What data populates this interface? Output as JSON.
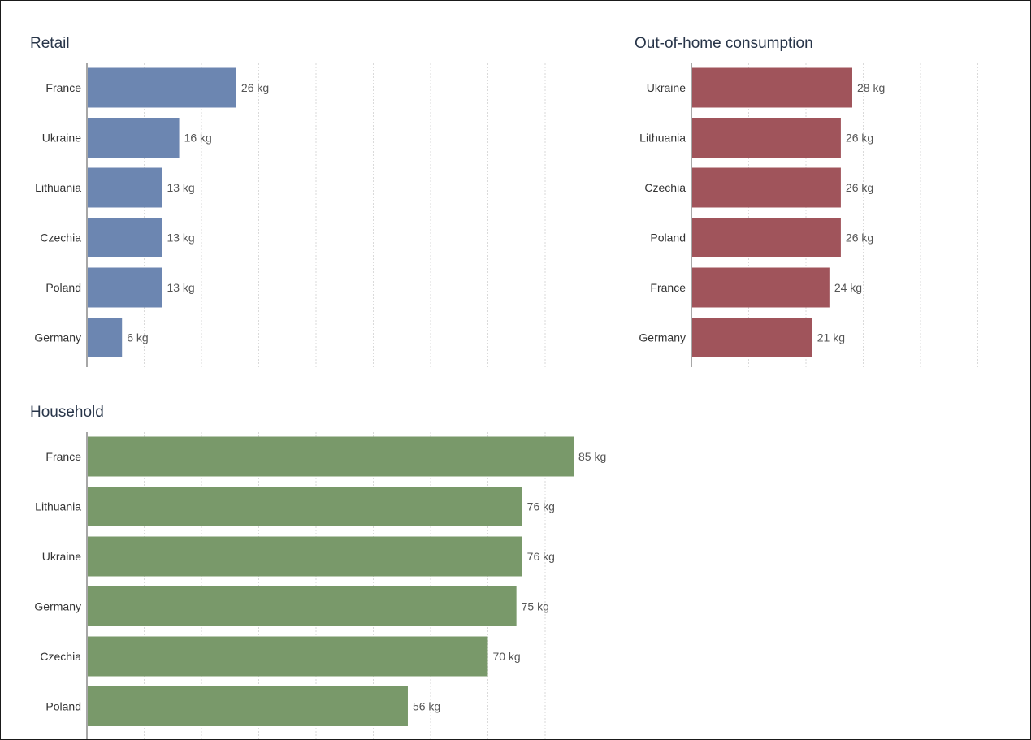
{
  "chart_data": [
    {
      "type": "bar",
      "orientation": "horizontal",
      "title": "Retail",
      "categories": [
        "France",
        "Ukraine",
        "Lithuania",
        "Czechia",
        "Poland",
        "Germany"
      ],
      "values": [
        26,
        16,
        13,
        13,
        13,
        6
      ],
      "value_labels": [
        "26 kg",
        "16 kg",
        "13 kg",
        "13 kg",
        "13 kg",
        "6 kg"
      ],
      "unit": "kg",
      "color": "#6c86b1",
      "xlim": [
        0,
        85
      ],
      "grid": true
    },
    {
      "type": "bar",
      "orientation": "horizontal",
      "title": "Out-of-home consumption",
      "categories": [
        "Ukraine",
        "Lithuania",
        "Czechia",
        "Poland",
        "France",
        "Germany"
      ],
      "values": [
        28,
        26,
        26,
        26,
        24,
        21
      ],
      "value_labels": [
        "28 kg",
        "26 kg",
        "26 kg",
        "26 kg",
        "24 kg",
        "21 kg"
      ],
      "unit": "kg",
      "color": "#a0545b",
      "xlim": [
        0,
        85
      ],
      "grid": true
    },
    {
      "type": "bar",
      "orientation": "horizontal",
      "title": "Household",
      "categories": [
        "France",
        "Lithuania",
        "Ukraine",
        "Germany",
        "Czechia",
        "Poland"
      ],
      "values": [
        85,
        76,
        76,
        75,
        70,
        56
      ],
      "value_labels": [
        "85 kg",
        "76 kg",
        "76 kg",
        "75 kg",
        "70 kg",
        "56 kg"
      ],
      "unit": "kg",
      "color": "#79996a",
      "xlim": [
        0,
        85
      ],
      "grid": true
    }
  ]
}
